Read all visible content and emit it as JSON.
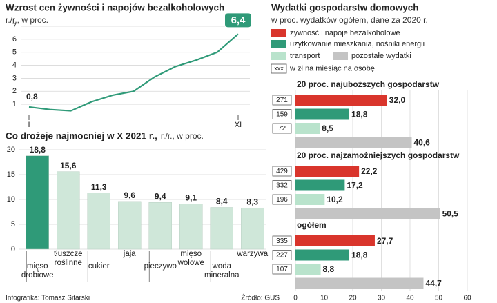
{
  "chart_data": [
    {
      "type": "line",
      "title": "Wzrost cen żywności i napojów bezalkoholowych",
      "subtitle": "r./r., w proc.",
      "categories": [
        "I",
        null,
        null,
        null,
        null,
        null,
        null,
        null,
        null,
        null,
        "XI"
      ],
      "values": [
        0.8,
        0.6,
        0.5,
        1.2,
        1.7,
        2.0,
        3.1,
        3.9,
        4.4,
        5.0,
        6.4
      ],
      "value_labels": [
        "0,8",
        null,
        null,
        null,
        null,
        null,
        null,
        null,
        null,
        null,
        "6,4"
      ],
      "color": "#2f9a78",
      "ylim": [
        0,
        7
      ],
      "yticks": [
        1,
        2,
        3,
        4,
        5,
        6,
        7
      ],
      "grid": true
    },
    {
      "type": "bar",
      "title": "Co drożeje najmocniej w X 2021 r.,",
      "subtitle": "r./r., w proc.",
      "categories": [
        "mięso drobiowe",
        "tłuszcze roślinne",
        "cukier",
        "jaja",
        "pieczywo",
        "mięso wołowe",
        "woda mineralna",
        "warzywa"
      ],
      "values": [
        18.8,
        15.6,
        11.3,
        9.6,
        9.4,
        9.1,
        8.4,
        8.3
      ],
      "value_labels": [
        "18,8",
        "15,6",
        "11,3",
        "9,6",
        "9,4",
        "9,1",
        "8,4",
        "8,3"
      ],
      "colors": [
        "#2f9a78",
        "#cfe7d9",
        "#cfe7d9",
        "#cfe7d9",
        "#cfe7d9",
        "#cfe7d9",
        "#cfe7d9",
        "#cfe7d9"
      ],
      "ylim": [
        0,
        20
      ],
      "yticks": [
        0,
        5,
        10,
        15,
        20
      ],
      "grid": true
    },
    {
      "type": "hbar",
      "title": "Wydatki gospodarstw domowych",
      "subtitle": "w proc. wydatków ogółem, dane za 2020 r.",
      "categories": [
        "20 proc. najuboższych gospodarstw",
        "20 proc. najzamożniejszych gospodarstw",
        "ogółem"
      ],
      "series": [
        {
          "name": "żywność i napoje bezalkoholowe",
          "color": "#d9352c",
          "values": [
            32.0,
            22.2,
            27.7
          ],
          "value_labels": [
            "32,0",
            "22,2",
            "27,7"
          ],
          "amounts": [
            271,
            429,
            335
          ]
        },
        {
          "name": "użytkowanie mieszkania, nośniki energii",
          "color": "#2f9a78",
          "values": [
            18.8,
            17.2,
            18.8
          ],
          "value_labels": [
            "18,8",
            "17,2",
            "18,8"
          ],
          "amounts": [
            159,
            332,
            227
          ]
        },
        {
          "name": "transport",
          "color": "#b9e3cc",
          "values": [
            8.5,
            10.2,
            8.8
          ],
          "value_labels": [
            "8,5",
            "10,2",
            "8,8"
          ],
          "amounts": [
            72,
            196,
            107
          ]
        },
        {
          "name": "pozostałe wydatki",
          "color": "#c4c4c4",
          "values": [
            40.6,
            50.5,
            44.7
          ],
          "value_labels": [
            "40,6",
            "50,5",
            "44,7"
          ]
        }
      ],
      "amount_legend": {
        "sample": "xxx",
        "label": "w zł na miesiąc na osobę"
      },
      "xlim": [
        0,
        60
      ],
      "xticks": [
        0,
        10,
        20,
        30,
        40,
        50,
        60
      ],
      "grid": true
    }
  ],
  "credit": "Infografika: Tomasz Sitarski",
  "source": "Źródło: GUS"
}
